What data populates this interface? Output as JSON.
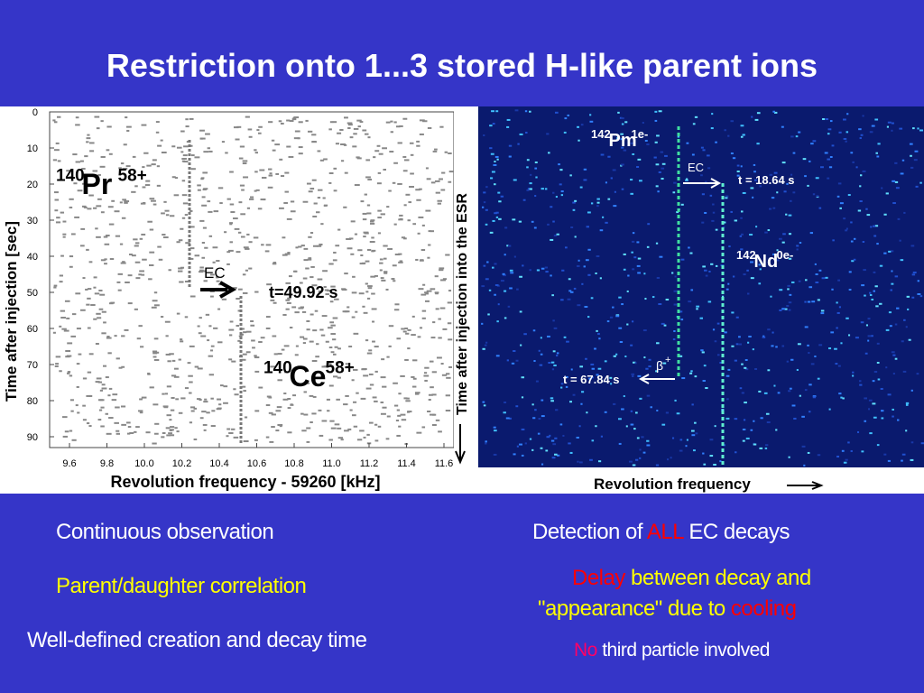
{
  "title": "Restriction onto 1...3 stored H-like parent ions",
  "left_plot": {
    "y_label": "Time after injection [sec]",
    "x_label": "Revolution frequency - 59260 [kHz]",
    "ylim": [
      0,
      90
    ],
    "yticks": [
      0,
      10,
      20,
      30,
      40,
      50,
      60,
      70,
      80,
      90
    ],
    "xlim": [
      9.6,
      11.6
    ],
    "xticks": [
      9.6,
      9.8,
      {
        "value": 10.0,
        "label": "10.0"
      },
      10.2,
      10.4,
      10.6,
      10.8,
      {
        "value": 11.0,
        "label": "11.0"
      },
      11.2,
      11.4,
      11.6
    ],
    "parent": {
      "mass": "140",
      "symbol": "Pr",
      "charge": "58+"
    },
    "daughter": {
      "mass": "140",
      "symbol": "Ce",
      "charge": "58+"
    },
    "arrow_label": "EC",
    "time_label": "t=49.92 s"
  },
  "right_plot": {
    "y_label": "Time after injection into the ESR",
    "x_label": "Revolution frequency",
    "parent": {
      "mass": "142",
      "symbol": "Pm",
      "charge": "1e-"
    },
    "daughter": {
      "mass": "142",
      "symbol": "Nd",
      "charge": "0e-"
    },
    "ec_label": "EC",
    "ec_time": "t = 18.64 s",
    "beta_symbol": "β",
    "beta_charge": "+",
    "beta_time": "t = 67.84 s"
  },
  "left_bullets": [
    {
      "text": "Continuous observation",
      "color": "#ffffff"
    },
    {
      "text": "Parent/daughter correlation",
      "color": "#ffff00"
    },
    {
      "text": "Well-defined creation and decay time",
      "color": "#ffffff"
    }
  ],
  "right_bullets": [
    [
      {
        "text": "Detection of ",
        "color": "#ffffff"
      },
      {
        "text": "ALL",
        "color": "#ff0000"
      },
      {
        "text": " EC decays",
        "color": "#ffffff"
      }
    ],
    [
      {
        "text": "Delay",
        "color": "#ff0000"
      },
      {
        "text": " between decay and",
        "color": "#ffff00"
      }
    ],
    [
      {
        "text": "\"appearance\" due to ",
        "color": "#ffff00"
      },
      {
        "text": "cooling",
        "color": "#ff0000"
      }
    ],
    [
      {
        "text": "No",
        "color": "#ff0066"
      },
      {
        "text": " third particle involved",
        "color": "#ffffff"
      }
    ]
  ]
}
